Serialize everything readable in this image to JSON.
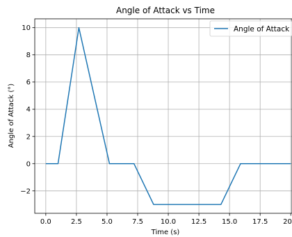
{
  "chart_data": {
    "type": "line",
    "title": "Angle of Attack vs Time",
    "xlabel": "Time (s)",
    "ylabel": "Angle of Attack (°)",
    "xlim": [
      -0.9,
      20.1
    ],
    "ylim": [
      -3.65,
      10.65
    ],
    "xticks": [
      0,
      2.5,
      5,
      7.5,
      10,
      12.5,
      15,
      17.5,
      20
    ],
    "xtick_labels": [
      "0.0",
      "2.5",
      "5.0",
      "7.5",
      "10.0",
      "12.5",
      "15.0",
      "17.5",
      "20.0"
    ],
    "yticks": [
      -2,
      0,
      2,
      4,
      6,
      8,
      10
    ],
    "ytick_labels": [
      "−2",
      "0",
      "2",
      "4",
      "6",
      "8",
      "10"
    ],
    "grid": true,
    "legend_position": "top-right",
    "series": [
      {
        "name": "Angle of Attack",
        "color": "#1f77b4",
        "x": [
          0,
          1.0,
          2.7,
          5.2,
          7.2,
          8.8,
          14.3,
          15.9,
          20.0
        ],
        "y": [
          0,
          0,
          10,
          0,
          0,
          -3,
          -3,
          0,
          0
        ]
      }
    ]
  }
}
